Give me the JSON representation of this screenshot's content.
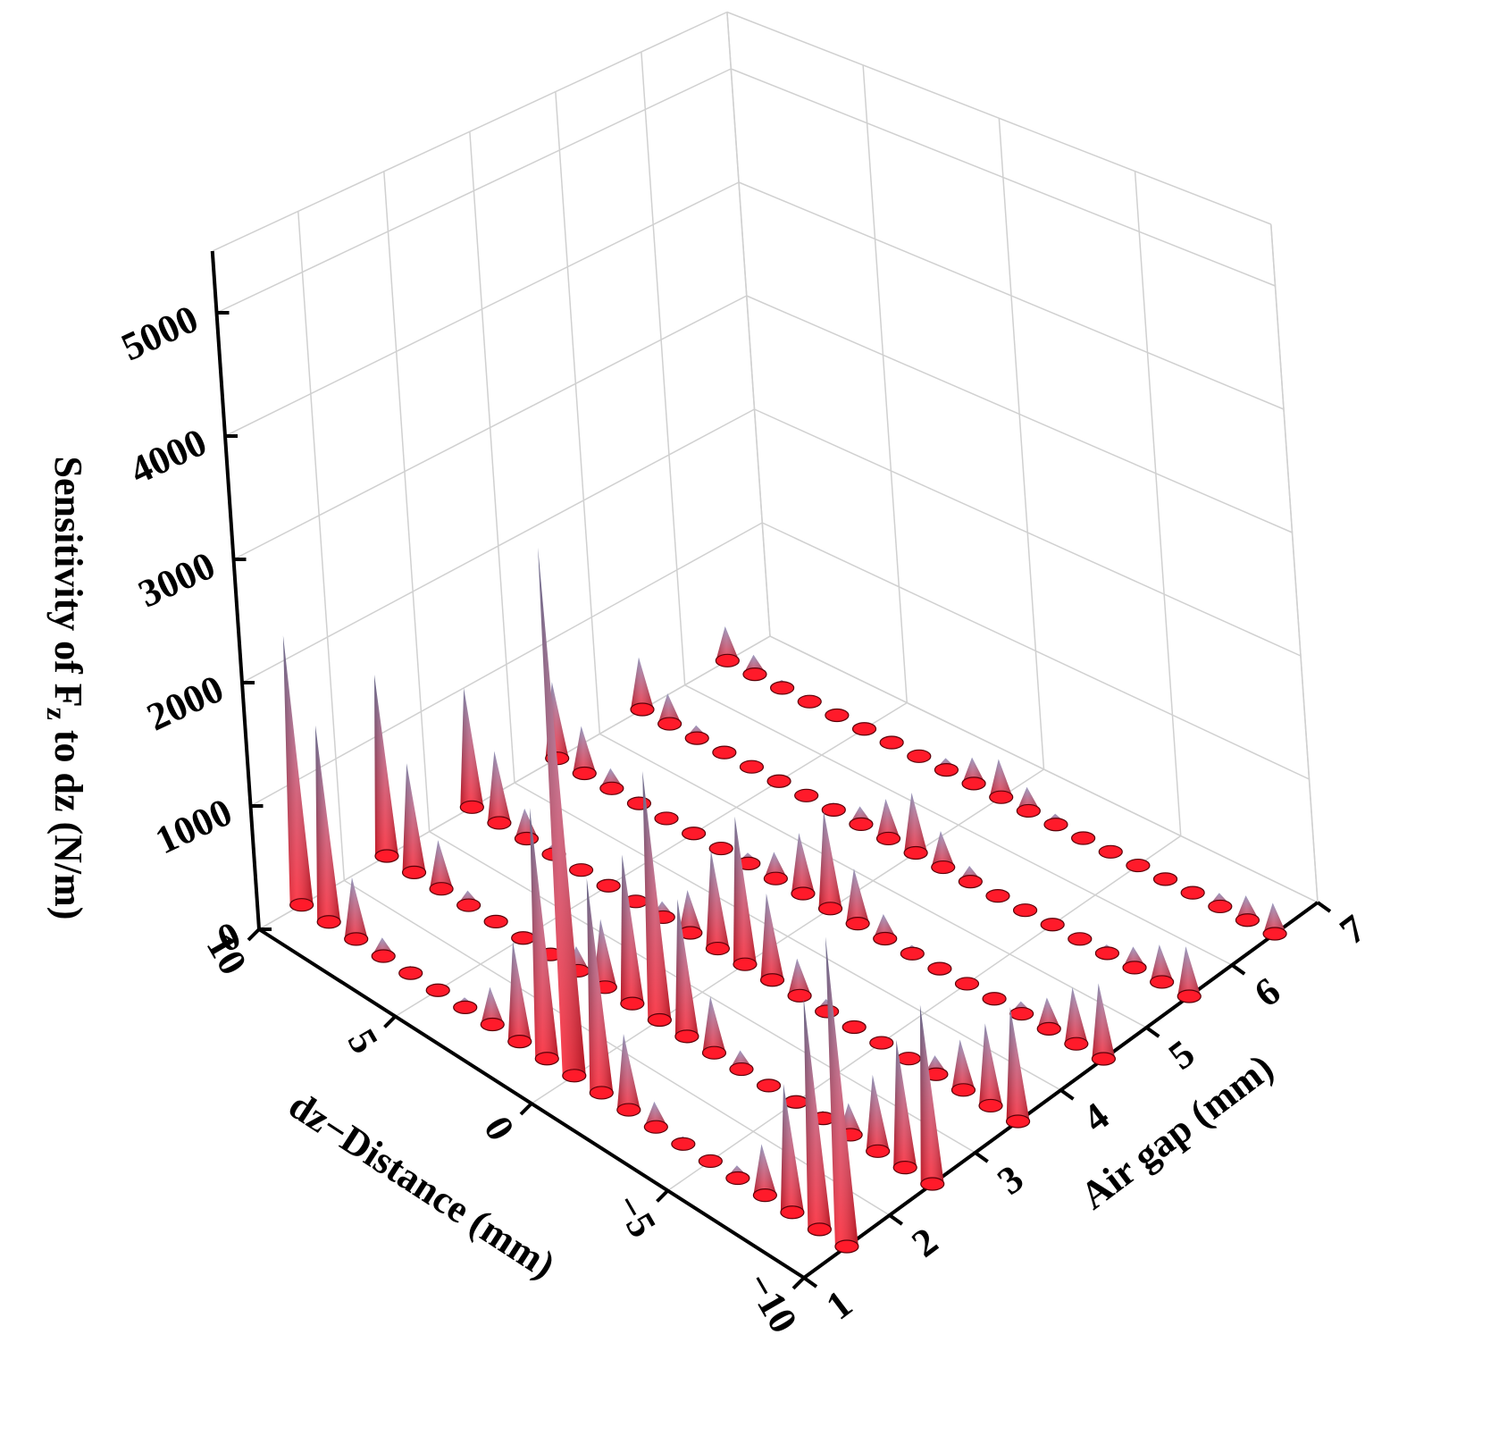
{
  "chart_data": {
    "type": "cone3d",
    "z_label": [
      "Sensitivity of F",
      "z",
      " to dz (N/m)"
    ],
    "x_label": "dz−Distance (mm)",
    "y_label": "Air gap (mm)",
    "x": [
      -10,
      -9,
      -8,
      -7,
      -6,
      -5,
      -4,
      -3,
      -2,
      -1,
      0,
      1,
      2,
      3,
      4,
      5,
      6,
      7,
      8,
      9,
      10
    ],
    "xlim": [
      10,
      -10
    ],
    "xticks": [
      10,
      5,
      0,
      {
        "value": -5,
        "label": "−5"
      },
      {
        "value": -10,
        "label": "−10"
      }
    ],
    "ylim": [
      1,
      7
    ],
    "yticks": [
      1,
      2,
      3,
      4,
      5,
      6,
      7
    ],
    "zlim": [
      0,
      5500
    ],
    "zticks": [
      0,
      1000,
      2000,
      3000,
      4000,
      5000
    ],
    "grid": true,
    "color": "#ff1a2a",
    "tip_color": "#8a8cb8",
    "series": [
      {
        "air_gap": 1.5,
        "values": [
          2400,
          1800,
          1000,
          400,
          100,
          30,
          60,
          200,
          600,
          1700,
          4200,
          2000,
          800,
          300,
          80,
          30,
          60,
          150,
          500,
          1600,
          2200
        ]
      },
      {
        "air_gap": 2.5,
        "values": [
          1400,
          1000,
          600,
          250,
          60,
          20,
          40,
          150,
          450,
          1100,
          2000,
          1200,
          550,
          200,
          50,
          20,
          40,
          120,
          400,
          900,
          1500
        ]
      },
      {
        "air_gap": 3.5,
        "values": [
          900,
          650,
          400,
          150,
          40,
          15,
          30,
          100,
          300,
          700,
          1200,
          800,
          350,
          130,
          40,
          15,
          30,
          90,
          250,
          600,
          1000
        ]
      },
      {
        "air_gap": 4.5,
        "values": [
          600,
          450,
          250,
          100,
          30,
          10,
          20,
          70,
          200,
          450,
          800,
          500,
          220,
          90,
          25,
          10,
          20,
          60,
          170,
          400,
          650
        ]
      },
      {
        "air_gap": 5.5,
        "values": [
          400,
          300,
          170,
          70,
          20,
          8,
          15,
          50,
          130,
          300,
          500,
          330,
          150,
          60,
          18,
          8,
          15,
          40,
          110,
          260,
          450
        ]
      },
      {
        "air_gap": 6.5,
        "values": [
          250,
          200,
          110,
          45,
          15,
          5,
          10,
          35,
          90,
          200,
          320,
          220,
          100,
          40,
          12,
          5,
          10,
          28,
          70,
          170,
          300
        ]
      }
    ]
  }
}
